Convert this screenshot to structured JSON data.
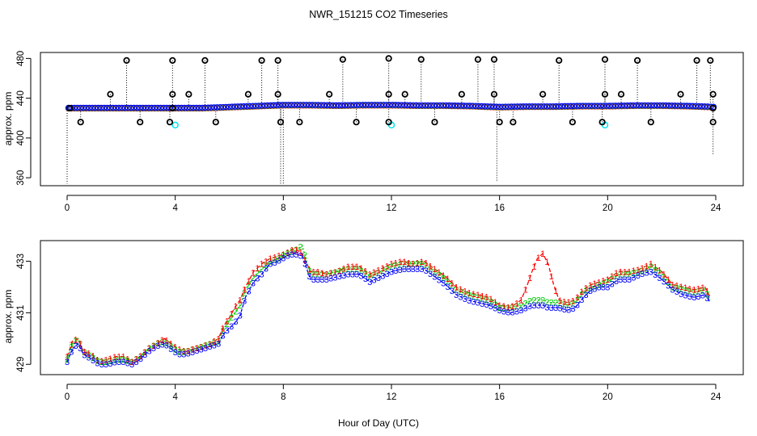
{
  "title": "NWR_151215  CO2 Timeseries",
  "xlabel": "Hour of Day (UTC)",
  "colors": {
    "series1": "#ff0000",
    "series2": "#00cc00",
    "series3": "#0000ff",
    "flask": "#000000",
    "flask_alt": "#00e5ee"
  },
  "chart_data": [
    {
      "type": "scatter",
      "title": "",
      "xlabel": "",
      "ylabel": "approx. ppm",
      "xlim": [
        0,
        24
      ],
      "ylim": [
        352,
        486
      ],
      "xticks": [
        "0",
        "4",
        "8",
        "12",
        "16",
        "20",
        "24"
      ],
      "yticks": [
        "360",
        "400",
        "440",
        "480"
      ],
      "baseline": {
        "x": [
          0,
          1,
          2,
          3,
          4,
          5,
          6,
          7,
          8,
          9,
          10,
          11,
          12,
          13,
          14,
          15,
          16,
          17,
          18,
          19,
          20,
          21,
          22,
          23,
          24
        ],
        "y": [
          430,
          430,
          430,
          430,
          430,
          430,
          431,
          432,
          433,
          433,
          432.5,
          433,
          433,
          432.5,
          432.5,
          432,
          431,
          431.5,
          431.5,
          432,
          432,
          432.5,
          432.5,
          432,
          431
        ]
      },
      "flask_points": {
        "x": [
          0.1,
          0.5,
          1.6,
          2.2,
          2.7,
          3.8,
          3.9,
          3.9,
          3.9,
          4.5,
          5.1,
          5.5,
          6.7,
          7.2,
          7.8,
          7.8,
          7.9,
          8.6,
          9.7,
          10.2,
          10.7,
          11.9,
          11.9,
          11.9,
          12.5,
          13.1,
          13.6,
          14.6,
          15.2,
          15.8,
          15.8,
          16.0,
          16.5,
          17.6,
          18.2,
          18.7,
          19.8,
          19.9,
          19.9,
          20.5,
          21.1,
          21.6,
          22.7,
          23.3,
          23.8,
          23.9,
          23.9,
          23.9
        ],
        "y": [
          430,
          416,
          444,
          478,
          416,
          416,
          444,
          478,
          430,
          444,
          478,
          416,
          444,
          478,
          478,
          444,
          416,
          416,
          444,
          479,
          416,
          480,
          444,
          416,
          444,
          479,
          416,
          444,
          479,
          479,
          444,
          416,
          416,
          444,
          478,
          416,
          416,
          479,
          444,
          444,
          478,
          416,
          444,
          478,
          478,
          444,
          430,
          416
        ]
      },
      "cyan_points": {
        "x": [
          4.0,
          12.0,
          19.9
        ],
        "y": [
          413,
          413,
          413
        ]
      },
      "dip_lines": [
        {
          "x": 0.0,
          "y_low": 354
        },
        {
          "x": 7.9,
          "y_low": 354
        },
        {
          "x": 8.0,
          "y_low": 354
        },
        {
          "x": 15.9,
          "y_low": 356
        },
        {
          "x": 23.9,
          "y_low": 384
        }
      ]
    },
    {
      "type": "line",
      "title": "",
      "xlabel": "Hour of Day (UTC)",
      "ylabel": "approx. ppm",
      "xlim": [
        0,
        24
      ],
      "ylim": [
        428.6,
        433.8
      ],
      "xticks": [
        "0",
        "4",
        "8",
        "12",
        "16",
        "20",
        "24"
      ],
      "yticks": [
        "429",
        "431",
        "433"
      ],
      "series": [
        {
          "name": "1",
          "x": [
            0,
            0.2,
            0.4,
            0.6,
            0.9,
            1.2,
            1.5,
            1.8,
            2.1,
            2.4,
            2.7,
            3.0,
            3.3,
            3.6,
            4.1,
            4.4,
            4.7,
            5.0,
            5.3,
            5.6,
            5.8,
            6.0,
            6.2,
            6.4,
            6.6,
            6.9,
            7.2,
            7.5,
            7.8,
            8.1,
            8.4,
            8.7,
            9.0,
            9.3,
            9.6,
            10.0,
            10.4,
            10.8,
            11.2,
            11.6,
            12.0,
            12.4,
            12.8,
            13.2,
            13.6,
            14.0,
            14.4,
            14.8,
            15.2,
            15.6,
            16.0,
            16.4,
            16.8,
            17.0,
            17.2,
            17.4,
            17.6,
            17.8,
            18.0,
            18.2,
            18.5,
            18.8,
            19.1,
            19.4,
            19.7,
            20.0,
            20.4,
            20.8,
            21.2,
            21.6,
            22.0,
            22.4,
            22.8,
            23.2,
            23.6,
            23.8
          ],
          "y": [
            429.3,
            429.9,
            430.0,
            429.5,
            429.4,
            429.1,
            429.2,
            429.3,
            429.3,
            429.1,
            429.3,
            429.6,
            429.8,
            430.0,
            429.6,
            429.5,
            429.6,
            429.7,
            429.8,
            430.0,
            430.5,
            430.8,
            431.2,
            431.5,
            432.0,
            432.6,
            432.9,
            433.1,
            433.2,
            433.3,
            433.5,
            433.3,
            432.6,
            432.6,
            432.5,
            432.6,
            432.8,
            432.8,
            432.5,
            432.7,
            432.9,
            433.0,
            432.9,
            433.0,
            432.7,
            432.4,
            432.0,
            431.8,
            431.7,
            431.6,
            431.3,
            431.2,
            431.5,
            432.0,
            432.6,
            433.1,
            433.3,
            432.9,
            432.1,
            431.5,
            431.4,
            431.5,
            431.9,
            432.1,
            432.2,
            432.3,
            432.6,
            432.6,
            432.7,
            432.9,
            432.6,
            432.1,
            432.0,
            431.9,
            432.0,
            431.6
          ]
        },
        {
          "name": "2",
          "x": [
            0,
            0.2,
            0.4,
            0.6,
            0.9,
            1.2,
            1.5,
            1.8,
            2.1,
            2.4,
            2.7,
            3.0,
            3.3,
            3.6,
            4.1,
            4.4,
            4.7,
            5.0,
            5.3,
            5.6,
            5.8,
            6.0,
            6.2,
            6.4,
            6.6,
            6.9,
            7.2,
            7.5,
            7.8,
            8.1,
            8.4,
            8.7,
            9.0,
            9.3,
            9.6,
            10.0,
            10.4,
            10.8,
            11.2,
            11.6,
            12.0,
            12.4,
            12.8,
            13.2,
            13.6,
            14.0,
            14.4,
            14.8,
            15.2,
            15.6,
            16.0,
            16.4,
            16.8,
            17.0,
            17.2,
            17.4,
            17.6,
            17.8,
            18.0,
            18.2,
            18.5,
            18.8,
            19.1,
            19.4,
            19.7,
            20.0,
            20.4,
            20.8,
            21.2,
            21.6,
            22.0,
            22.4,
            22.8,
            23.2,
            23.6,
            23.8
          ],
          "y": [
            429.2,
            429.8,
            430.0,
            429.5,
            429.3,
            429.1,
            429.1,
            429.2,
            429.2,
            429.1,
            429.3,
            429.6,
            429.8,
            429.9,
            429.5,
            429.5,
            429.6,
            429.7,
            429.8,
            429.9,
            430.4,
            430.7,
            431.0,
            431.3,
            431.9,
            432.4,
            432.7,
            433.0,
            433.1,
            433.3,
            433.4,
            433.6,
            432.5,
            432.5,
            432.5,
            432.6,
            432.7,
            432.7,
            432.4,
            432.6,
            432.8,
            432.9,
            432.9,
            432.9,
            432.6,
            432.3,
            431.9,
            431.7,
            431.6,
            431.5,
            431.2,
            431.2,
            431.3,
            431.4,
            431.5,
            431.5,
            431.5,
            431.4,
            431.4,
            431.4,
            431.3,
            431.4,
            431.8,
            432.0,
            432.1,
            432.2,
            432.5,
            432.5,
            432.6,
            432.8,
            432.5,
            432.0,
            431.9,
            431.8,
            431.9,
            431.5
          ]
        },
        {
          "name": "3",
          "x": [
            0,
            0.2,
            0.4,
            0.6,
            0.9,
            1.2,
            1.5,
            1.8,
            2.1,
            2.4,
            2.7,
            3.0,
            3.3,
            3.6,
            4.1,
            4.4,
            4.7,
            5.0,
            5.3,
            5.6,
            5.8,
            6.0,
            6.2,
            6.4,
            6.6,
            6.9,
            7.2,
            7.5,
            7.8,
            8.1,
            8.4,
            8.7,
            9.0,
            9.3,
            9.6,
            10.0,
            10.4,
            10.8,
            11.2,
            11.6,
            12.0,
            12.4,
            12.8,
            13.2,
            13.6,
            14.0,
            14.4,
            14.8,
            15.2,
            15.6,
            16.0,
            16.4,
            16.8,
            17.0,
            17.2,
            17.4,
            17.6,
            17.8,
            18.0,
            18.2,
            18.5,
            18.8,
            19.1,
            19.4,
            19.7,
            20.0,
            20.4,
            20.8,
            21.2,
            21.6,
            22.0,
            22.4,
            22.8,
            23.2,
            23.6,
            23.8
          ],
          "y": [
            429.1,
            429.6,
            429.8,
            429.4,
            429.2,
            429.0,
            429.0,
            429.1,
            429.1,
            429.0,
            429.2,
            429.5,
            429.7,
            429.8,
            429.4,
            429.4,
            429.5,
            429.6,
            429.7,
            429.8,
            430.2,
            430.4,
            430.6,
            430.9,
            431.6,
            432.2,
            432.5,
            432.9,
            433.0,
            433.2,
            433.3,
            433.2,
            432.3,
            432.3,
            432.3,
            432.4,
            432.5,
            432.5,
            432.2,
            432.4,
            432.6,
            432.7,
            432.7,
            432.7,
            432.4,
            432.1,
            431.7,
            431.5,
            431.4,
            431.3,
            431.1,
            431.0,
            431.1,
            431.2,
            431.3,
            431.3,
            431.3,
            431.2,
            431.2,
            431.2,
            431.1,
            431.2,
            431.6,
            431.9,
            432.0,
            432.0,
            432.3,
            432.3,
            432.5,
            432.6,
            432.3,
            431.9,
            431.7,
            431.6,
            431.7,
            431.4
          ]
        }
      ]
    }
  ]
}
